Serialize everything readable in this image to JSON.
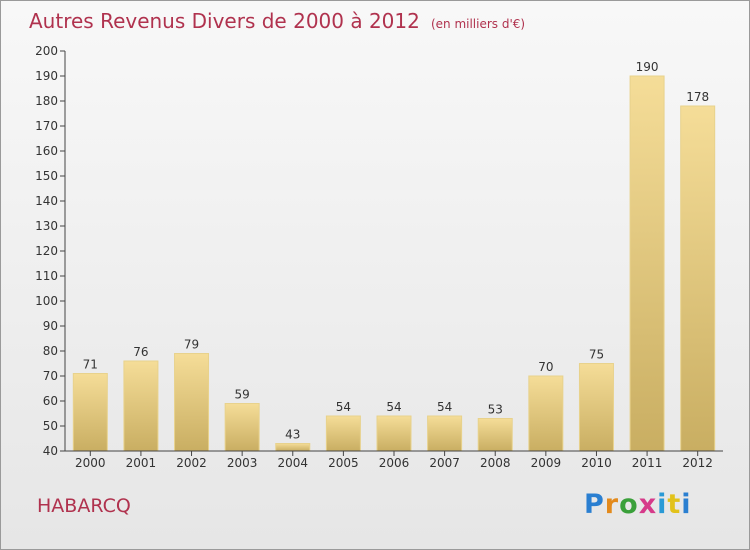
{
  "header": {
    "title": "Autres Revenus Divers de 2000 à 2012",
    "unit": "(en milliers d'€)"
  },
  "footer": {
    "commune": "HABARCQ",
    "logo_text": "Proxiti"
  },
  "chart_data": {
    "type": "bar",
    "title": "Autres Revenus Divers de 2000 à 2012",
    "subtitle": "(en milliers d'€)",
    "xlabel": "",
    "ylabel": "",
    "categories": [
      "2000",
      "2001",
      "2002",
      "2003",
      "2004",
      "2005",
      "2006",
      "2007",
      "2008",
      "2009",
      "2010",
      "2011",
      "2012"
    ],
    "values": [
      71,
      76,
      79,
      59,
      43,
      54,
      54,
      54,
      53,
      70,
      75,
      190,
      178
    ],
    "ylim": [
      40,
      200
    ],
    "yticks": [
      40,
      50,
      60,
      70,
      80,
      90,
      100,
      110,
      120,
      130,
      140,
      150,
      160,
      170,
      180,
      190,
      200
    ],
    "grid": false,
    "colors": {
      "bar_light": "#f5dd98",
      "bar_dark": "#c9ae62",
      "axis": "#444444",
      "text": "#333333"
    }
  }
}
